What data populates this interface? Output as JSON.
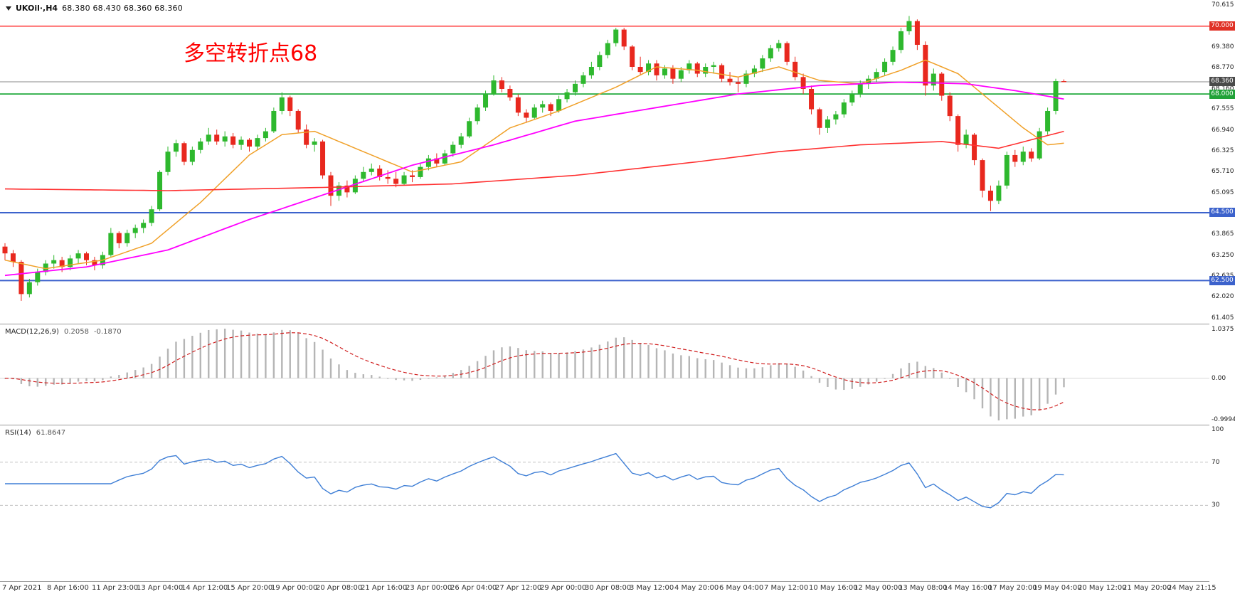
{
  "header": {
    "symbol": "UKOil·,H4",
    "ohlc": "68.380 68.430 68.360 68.360"
  },
  "annotation": {
    "text": "多空转折点68",
    "color": "#ff0000"
  },
  "macd": {
    "label": "MACD(12,26,9)",
    "value_main": "0.2058",
    "value_signal": "-0.1870",
    "scale": [
      "1.0375",
      "0.00",
      "-0.9994"
    ]
  },
  "rsi": {
    "label": "RSI(14)",
    "value": "61.8647",
    "scale": [
      "100",
      "70",
      "30"
    ]
  },
  "price_axis": {
    "ticks": [
      {
        "label": "70.615",
        "price": 70.615
      },
      {
        "label": "69.380",
        "price": 69.38
      },
      {
        "label": "68.770",
        "price": 68.77
      },
      {
        "label": "68.160",
        "price": 68.16
      },
      {
        "label": "67.555",
        "price": 67.555
      },
      {
        "label": "66.940",
        "price": 66.94
      },
      {
        "label": "66.325",
        "price": 66.325
      },
      {
        "label": "65.710",
        "price": 65.71
      },
      {
        "label": "65.095",
        "price": 65.095
      },
      {
        "label": "63.865",
        "price": 63.865
      },
      {
        "label": "63.250",
        "price": 63.25
      },
      {
        "label": "62.635",
        "price": 62.635
      },
      {
        "label": "62.020",
        "price": 62.02
      },
      {
        "label": "61.405",
        "price": 61.405
      }
    ],
    "badges": [
      {
        "label": "70.000",
        "price": 70.0,
        "bg": "#e03126"
      },
      {
        "label": "68.360",
        "price": 68.36,
        "bg": "#4a4a4a"
      },
      {
        "label": "68.000",
        "price": 68.0,
        "bg": "#21a238"
      },
      {
        "label": "64.500",
        "price": 64.5,
        "bg": "#3c62cc"
      },
      {
        "label": "62.500",
        "price": 62.5,
        "bg": "#3c62cc"
      }
    ]
  },
  "chart_data": [
    {
      "type": "candlestick",
      "title": "UKOil H4",
      "ylim": [
        61.29,
        70.73
      ],
      "up_color": "#2eb82e",
      "down_color": "#e8281e",
      "x_labels": [
        "7 Apr 2021",
        "8 Apr 16:00",
        "11 Apr 23:00",
        "13 Apr 04:00",
        "14 Apr 12:00",
        "15 Apr 20:00",
        "19 Apr 00:00",
        "20 Apr 08:00",
        "21 Apr 16:00",
        "23 Apr 00:00",
        "26 Apr 04:00",
        "27 Apr 12:00",
        "29 Apr 00:00",
        "30 Apr 08:00",
        "3 May 12:00",
        "4 May 20:00",
        "6 May 04:00",
        "7 May 12:00",
        "10 May 16:00",
        "12 May 00:00",
        "13 May 08:00",
        "14 May 16:00",
        "17 May 20:00",
        "19 May 04:00",
        "20 May 12:00",
        "21 May 20:00",
        "24 May 21:15"
      ],
      "hlines": [
        {
          "name": "resistance-70",
          "price": 70.0,
          "color": "#ff2a2a",
          "width": 1.3
        },
        {
          "name": "current-price-line",
          "price": 68.36,
          "color": "#8a8a8a",
          "width": 1
        },
        {
          "name": "pivot-68",
          "price": 68.0,
          "color": "#1fa83a",
          "width": 1.8
        },
        {
          "name": "support-64-5",
          "price": 64.5,
          "color": "#3c62cc",
          "width": 2
        },
        {
          "name": "support-62-5",
          "price": 62.5,
          "color": "#3c62cc",
          "width": 2
        }
      ],
      "moving_averages": [
        {
          "name": "ma-fast",
          "color": "#f0a028",
          "width": 1.5,
          "anchors": [
            [
              0,
              63.1
            ],
            [
              5,
              62.85
            ],
            [
              12,
              63.1
            ],
            [
              18,
              63.6
            ],
            [
              24,
              64.8
            ],
            [
              30,
              66.2
            ],
            [
              34,
              66.8
            ],
            [
              38,
              66.9
            ],
            [
              44,
              66.3
            ],
            [
              50,
              65.7
            ],
            [
              56,
              66.0
            ],
            [
              62,
              67.0
            ],
            [
              68,
              67.5
            ],
            [
              75,
              68.2
            ],
            [
              80,
              68.8
            ],
            [
              85,
              68.7
            ],
            [
              90,
              68.5
            ],
            [
              95,
              68.8
            ],
            [
              100,
              68.4
            ],
            [
              105,
              68.3
            ],
            [
              110,
              68.7
            ],
            [
              113,
              69.0
            ],
            [
              117,
              68.6
            ],
            [
              121,
              67.8
            ],
            [
              125,
              67.0
            ],
            [
              128,
              66.5
            ],
            [
              130,
              66.55
            ]
          ]
        },
        {
          "name": "ma-mid",
          "color": "#ff00ff",
          "width": 1.8,
          "anchors": [
            [
              0,
              62.65
            ],
            [
              10,
              62.9
            ],
            [
              20,
              63.4
            ],
            [
              30,
              64.3
            ],
            [
              40,
              65.1
            ],
            [
              50,
              65.9
            ],
            [
              60,
              66.5
            ],
            [
              70,
              67.2
            ],
            [
              80,
              67.6
            ],
            [
              90,
              68.0
            ],
            [
              100,
              68.25
            ],
            [
              110,
              68.35
            ],
            [
              118,
              68.3
            ],
            [
              124,
              68.1
            ],
            [
              130,
              67.85
            ]
          ]
        },
        {
          "name": "ma-slow",
          "color": "#ff3030",
          "width": 1.6,
          "anchors": [
            [
              0,
              65.2
            ],
            [
              20,
              65.15
            ],
            [
              40,
              65.25
            ],
            [
              55,
              65.35
            ],
            [
              70,
              65.6
            ],
            [
              85,
              66.0
            ],
            [
              95,
              66.3
            ],
            [
              105,
              66.5
            ],
            [
              115,
              66.6
            ],
            [
              122,
              66.4
            ],
            [
              130,
              66.9
            ]
          ]
        }
      ],
      "ohlc": [
        [
          63.5,
          63.6,
          63.1,
          63.3
        ],
        [
          63.3,
          63.4,
          62.9,
          63.05
        ],
        [
          63.05,
          63.1,
          61.9,
          62.1
        ],
        [
          62.1,
          62.55,
          62.0,
          62.45
        ],
        [
          62.45,
          62.85,
          62.35,
          62.75
        ],
        [
          62.75,
          63.1,
          62.65,
          63.0
        ],
        [
          63.0,
          63.25,
          62.85,
          63.1
        ],
        [
          63.1,
          63.2,
          62.75,
          62.9
        ],
        [
          62.9,
          63.25,
          62.8,
          63.15
        ],
        [
          63.15,
          63.4,
          63.0,
          63.3
        ],
        [
          63.3,
          63.35,
          62.95,
          63.1
        ],
        [
          63.1,
          63.2,
          62.8,
          62.95
        ],
        [
          62.95,
          63.35,
          62.85,
          63.25
        ],
        [
          63.25,
          64.05,
          63.2,
          63.9
        ],
        [
          63.9,
          63.95,
          63.45,
          63.6
        ],
        [
          63.6,
          64.0,
          63.5,
          63.9
        ],
        [
          63.9,
          64.15,
          63.75,
          64.05
        ],
        [
          64.05,
          64.3,
          63.9,
          64.2
        ],
        [
          64.2,
          64.7,
          64.1,
          64.6
        ],
        [
          64.6,
          65.75,
          64.55,
          65.7
        ],
        [
          65.7,
          66.45,
          65.6,
          66.3
        ],
        [
          66.3,
          66.65,
          66.15,
          66.55
        ],
        [
          66.55,
          66.6,
          65.9,
          66.0
        ],
        [
          66.0,
          66.45,
          65.9,
          66.35
        ],
        [
          66.35,
          66.7,
          66.25,
          66.6
        ],
        [
          66.6,
          67.0,
          66.5,
          66.8
        ],
        [
          66.8,
          66.95,
          66.5,
          66.6
        ],
        [
          66.6,
          66.9,
          66.45,
          66.75
        ],
        [
          66.75,
          66.85,
          66.4,
          66.5
        ],
        [
          66.5,
          66.75,
          66.35,
          66.65
        ],
        [
          66.65,
          66.7,
          66.3,
          66.45
        ],
        [
          66.45,
          66.8,
          66.35,
          66.7
        ],
        [
          66.7,
          67.0,
          66.6,
          66.9
        ],
        [
          66.9,
          67.6,
          66.85,
          67.5
        ],
        [
          67.5,
          68.05,
          67.4,
          67.9
        ],
        [
          67.9,
          67.95,
          67.35,
          67.5
        ],
        [
          67.5,
          67.55,
          66.85,
          66.95
        ],
        [
          66.95,
          67.1,
          66.4,
          66.5
        ],
        [
          66.5,
          66.7,
          66.3,
          66.6
        ],
        [
          66.6,
          66.65,
          65.5,
          65.6
        ],
        [
          65.6,
          65.7,
          64.7,
          65.0
        ],
        [
          65.0,
          65.4,
          64.85,
          65.3
        ],
        [
          65.3,
          65.45,
          64.95,
          65.1
        ],
        [
          65.1,
          65.6,
          65.05,
          65.5
        ],
        [
          65.5,
          65.85,
          65.4,
          65.7
        ],
        [
          65.7,
          65.95,
          65.6,
          65.8
        ],
        [
          65.8,
          65.9,
          65.45,
          65.55
        ],
        [
          65.55,
          65.75,
          65.35,
          65.5
        ],
        [
          65.5,
          65.7,
          65.25,
          65.35
        ],
        [
          65.35,
          65.7,
          65.3,
          65.6
        ],
        [
          65.6,
          65.75,
          65.4,
          65.55
        ],
        [
          65.55,
          65.95,
          65.5,
          65.85
        ],
        [
          65.85,
          66.2,
          65.75,
          66.1
        ],
        [
          66.1,
          66.25,
          65.85,
          65.95
        ],
        [
          65.95,
          66.35,
          65.9,
          66.25
        ],
        [
          66.25,
          66.6,
          66.15,
          66.5
        ],
        [
          66.5,
          66.85,
          66.4,
          66.75
        ],
        [
          66.75,
          67.3,
          66.7,
          67.2
        ],
        [
          67.2,
          67.7,
          67.1,
          67.6
        ],
        [
          67.6,
          68.1,
          67.5,
          68.0
        ],
        [
          68.0,
          68.55,
          67.95,
          68.4
        ],
        [
          68.4,
          68.5,
          68.05,
          68.15
        ],
        [
          68.15,
          68.25,
          67.8,
          67.9
        ],
        [
          67.9,
          68.0,
          67.35,
          67.45
        ],
        [
          67.45,
          67.55,
          67.15,
          67.3
        ],
        [
          67.3,
          67.7,
          67.25,
          67.6
        ],
        [
          67.6,
          67.8,
          67.45,
          67.7
        ],
        [
          67.7,
          67.75,
          67.35,
          67.5
        ],
        [
          67.5,
          67.95,
          67.45,
          67.85
        ],
        [
          67.85,
          68.15,
          67.75,
          68.05
        ],
        [
          68.05,
          68.4,
          67.95,
          68.3
        ],
        [
          68.3,
          68.65,
          68.2,
          68.55
        ],
        [
          68.55,
          68.95,
          68.45,
          68.8
        ],
        [
          68.8,
          69.25,
          68.7,
          69.15
        ],
        [
          69.15,
          69.6,
          69.05,
          69.5
        ],
        [
          69.5,
          69.95,
          69.4,
          69.9
        ],
        [
          69.9,
          69.95,
          69.3,
          69.4
        ],
        [
          69.4,
          69.45,
          68.7,
          68.8
        ],
        [
          68.8,
          69.1,
          68.55,
          68.65
        ],
        [
          68.65,
          69.0,
          68.55,
          68.9
        ],
        [
          68.9,
          69.0,
          68.4,
          68.55
        ],
        [
          68.55,
          68.85,
          68.45,
          68.75
        ],
        [
          68.75,
          68.85,
          68.3,
          68.45
        ],
        [
          68.45,
          68.8,
          68.35,
          68.7
        ],
        [
          68.7,
          69.0,
          68.6,
          68.9
        ],
        [
          68.9,
          68.95,
          68.5,
          68.6
        ],
        [
          68.6,
          68.9,
          68.5,
          68.8
        ],
        [
          68.8,
          68.95,
          68.6,
          68.85
        ],
        [
          68.85,
          68.9,
          68.35,
          68.45
        ],
        [
          68.45,
          68.65,
          68.25,
          68.35
        ],
        [
          68.35,
          68.5,
          68.05,
          68.3
        ],
        [
          68.3,
          68.7,
          68.2,
          68.6
        ],
        [
          68.6,
          68.85,
          68.5,
          68.75
        ],
        [
          68.75,
          69.15,
          68.65,
          69.05
        ],
        [
          69.05,
          69.45,
          68.95,
          69.35
        ],
        [
          69.35,
          69.6,
          69.25,
          69.5
        ],
        [
          69.5,
          69.55,
          68.85,
          68.95
        ],
        [
          68.95,
          69.1,
          68.4,
          68.5
        ],
        [
          68.5,
          68.6,
          68.0,
          68.15
        ],
        [
          68.15,
          68.25,
          67.4,
          67.55
        ],
        [
          67.55,
          67.6,
          66.8,
          67.0
        ],
        [
          67.0,
          67.35,
          66.85,
          67.25
        ],
        [
          67.25,
          67.5,
          67.1,
          67.4
        ],
        [
          67.4,
          67.85,
          67.3,
          67.75
        ],
        [
          67.75,
          68.1,
          67.65,
          68.0
        ],
        [
          68.0,
          68.4,
          67.9,
          68.3
        ],
        [
          68.3,
          68.55,
          68.15,
          68.45
        ],
        [
          68.45,
          68.75,
          68.35,
          68.65
        ],
        [
          68.65,
          69.05,
          68.55,
          68.95
        ],
        [
          68.95,
          69.4,
          68.85,
          69.3
        ],
        [
          69.3,
          69.95,
          69.2,
          69.85
        ],
        [
          69.85,
          70.3,
          69.75,
          70.15
        ],
        [
          70.15,
          70.2,
          69.3,
          69.45
        ],
        [
          69.45,
          69.55,
          67.95,
          68.25
        ],
        [
          68.25,
          68.75,
          68.1,
          68.6
        ],
        [
          68.6,
          68.65,
          67.8,
          67.95
        ],
        [
          67.95,
          68.05,
          67.2,
          67.35
        ],
        [
          67.35,
          67.4,
          66.3,
          66.5
        ],
        [
          66.5,
          66.95,
          66.4,
          66.8
        ],
        [
          66.8,
          66.85,
          65.9,
          66.05
        ],
        [
          66.05,
          66.1,
          64.95,
          65.15
        ],
        [
          65.15,
          65.3,
          64.55,
          64.85
        ],
        [
          64.85,
          65.45,
          64.75,
          65.3
        ],
        [
          65.3,
          66.3,
          65.2,
          66.2
        ],
        [
          66.2,
          66.35,
          65.85,
          66.0
        ],
        [
          66.0,
          66.45,
          65.9,
          66.3
        ],
        [
          66.3,
          66.4,
          66.0,
          66.1
        ],
        [
          66.1,
          67.0,
          66.05,
          66.9
        ],
        [
          66.9,
          67.6,
          66.8,
          67.5
        ],
        [
          67.5,
          68.45,
          67.4,
          68.38
        ],
        [
          68.38,
          68.43,
          68.36,
          68.36
        ]
      ]
    },
    {
      "type": "macd",
      "params": [
        12,
        26,
        9
      ],
      "values": {
        "macd": 0.2058,
        "signal": -0.187
      },
      "ylim": [
        -0.9994,
        1.0375
      ],
      "histogram_color": "#b5b5b5",
      "signal_color": "#d02020",
      "source": "computed from candlestick closes (EMA12-EMA26, signal EMA9)"
    },
    {
      "type": "rsi",
      "period": 14,
      "value": 61.8647,
      "range": [
        0,
        100
      ],
      "levels": [
        70,
        30
      ],
      "line_color": "#3f7fd6"
    }
  ]
}
